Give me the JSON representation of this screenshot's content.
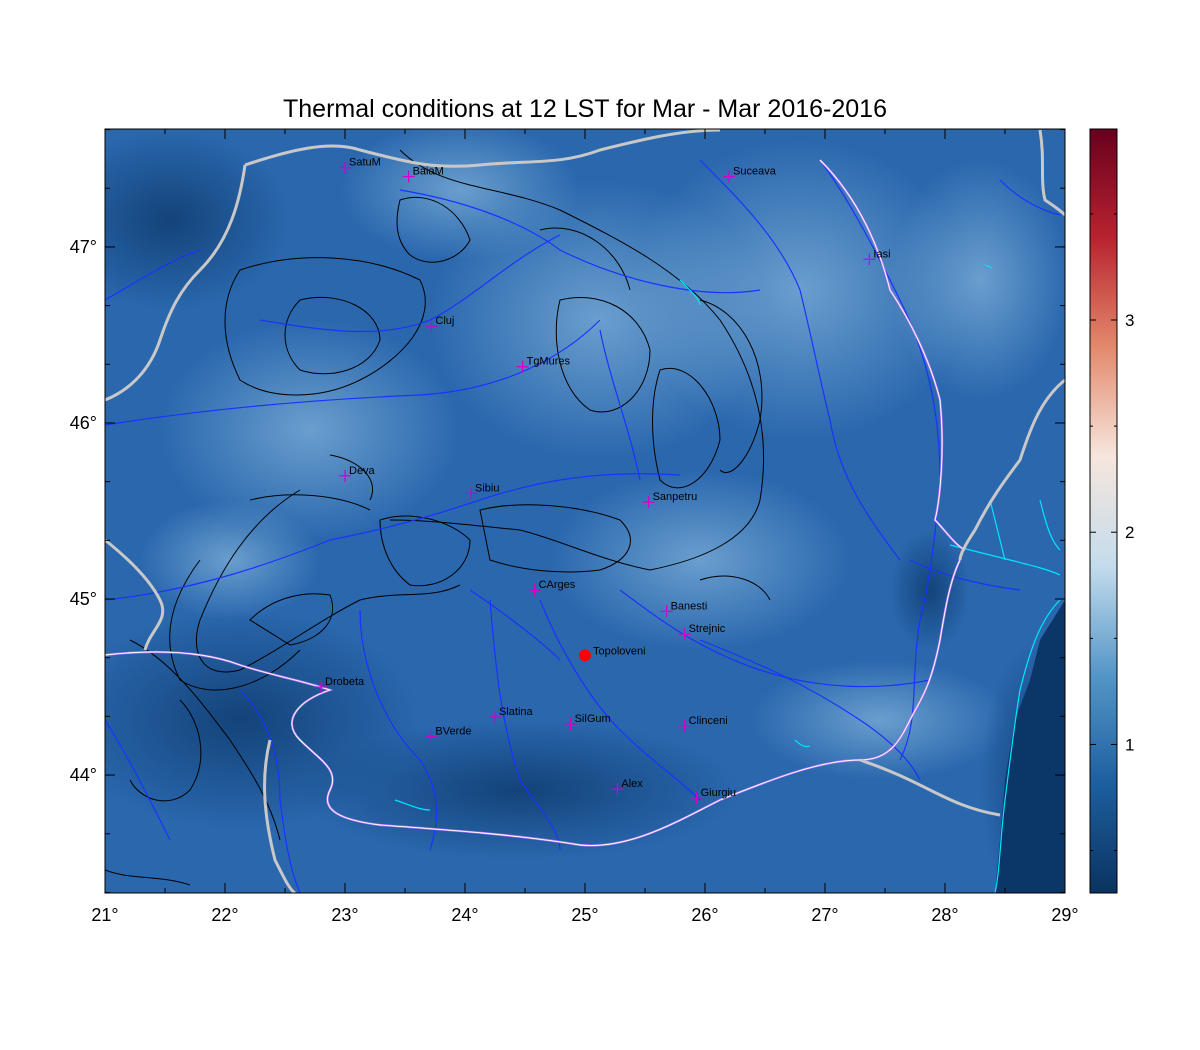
{
  "map": {
    "title": "Thermal conditions at 12 LST for Mar - Mar  2016-2016",
    "lon_ticks": [
      {
        "value": 21,
        "label": "21°"
      },
      {
        "value": 22,
        "label": "22°"
      },
      {
        "value": 23,
        "label": "23°"
      },
      {
        "value": 24,
        "label": "24°"
      },
      {
        "value": 25,
        "label": "25°"
      },
      {
        "value": 26,
        "label": "26°"
      },
      {
        "value": 27,
        "label": "27°"
      },
      {
        "value": 28,
        "label": "28°"
      },
      {
        "value": 29,
        "label": "29°"
      }
    ],
    "lat_ticks": [
      {
        "value": 44,
        "label": "44°"
      },
      {
        "value": 45,
        "label": "45°"
      },
      {
        "value": 46,
        "label": "46°"
      },
      {
        "value": 47,
        "label": "47°"
      }
    ],
    "lon_range": [
      21,
      29
    ],
    "lat_range": [
      43.33,
      47.67
    ],
    "colorbar": {
      "range": [
        0.3,
        3.9
      ],
      "ticks": [
        {
          "value": 1,
          "label": "1"
        },
        {
          "value": 2,
          "label": "2"
        },
        {
          "value": 3,
          "label": "3"
        }
      ],
      "colors": [
        "#0a3360",
        "#1d5f9f",
        "#5596c8",
        "#c4dcec",
        "#f6e6dd",
        "#e3896c",
        "#b8232f",
        "#67001f"
      ]
    },
    "highlight": {
      "name": "Topoloveni",
      "lon": 25.0,
      "lat": 44.68,
      "color": "#ff0000"
    },
    "stations": [
      {
        "name": "SatuM",
        "lon": 23.0,
        "lat": 47.45
      },
      {
        "name": "BaiaM",
        "lon": 23.53,
        "lat": 47.4
      },
      {
        "name": "Suceava",
        "lon": 26.2,
        "lat": 47.4
      },
      {
        "name": "Iasi",
        "lon": 27.37,
        "lat": 46.93
      },
      {
        "name": "Cluj",
        "lon": 23.72,
        "lat": 46.55
      },
      {
        "name": "TgMures",
        "lon": 24.48,
        "lat": 46.32
      },
      {
        "name": "Deva",
        "lon": 23.0,
        "lat": 45.7
      },
      {
        "name": "Sibiu",
        "lon": 24.05,
        "lat": 45.6
      },
      {
        "name": "Sanpetru",
        "lon": 25.53,
        "lat": 45.55
      },
      {
        "name": "CArges",
        "lon": 24.58,
        "lat": 45.05
      },
      {
        "name": "Banesti",
        "lon": 25.68,
        "lat": 44.93
      },
      {
        "name": "Strejnic",
        "lon": 25.83,
        "lat": 44.8
      },
      {
        "name": "Drobeta",
        "lon": 22.8,
        "lat": 44.5
      },
      {
        "name": "Slatina",
        "lon": 24.25,
        "lat": 44.33
      },
      {
        "name": "SilGum",
        "lon": 24.88,
        "lat": 44.29
      },
      {
        "name": "Clinceni",
        "lon": 25.83,
        "lat": 44.28
      },
      {
        "name": "BVerde",
        "lon": 23.72,
        "lat": 44.22
      },
      {
        "name": "Alex",
        "lon": 25.27,
        "lat": 43.92
      },
      {
        "name": "Giurgiu",
        "lon": 25.93,
        "lat": 43.87
      }
    ]
  }
}
